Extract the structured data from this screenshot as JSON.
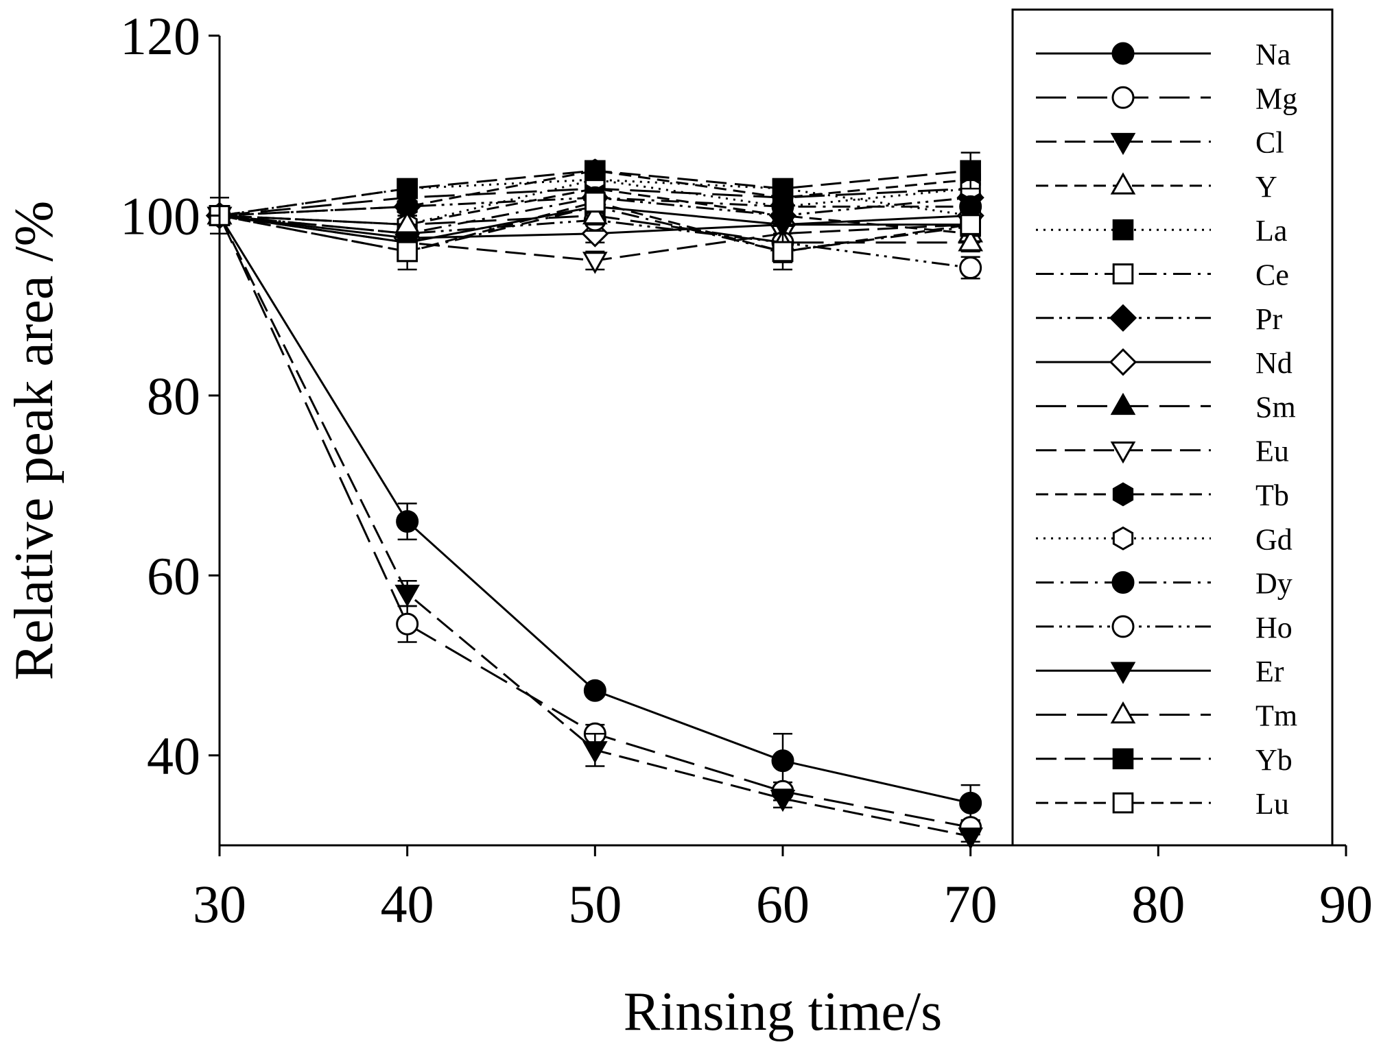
{
  "chart_data": {
    "type": "line",
    "title": "",
    "xlabel": "Rinsing time/s",
    "ylabel": "Relative peak area /%",
    "xlim": [
      30,
      90
    ],
    "ylim": [
      30,
      120
    ],
    "xticks": [
      30,
      40,
      50,
      60,
      70,
      80,
      90
    ],
    "yticks": [
      40,
      60,
      80,
      100,
      120
    ],
    "legend_position": "right",
    "x": [
      30,
      40,
      50,
      60,
      70
    ],
    "series": [
      {
        "name": "Na",
        "values": [
          100,
          66,
          47.2,
          39.4,
          34.7
        ],
        "errors": [
          0,
          2.0,
          0.6,
          3.0,
          2.0
        ],
        "marker": "circle",
        "filled": true,
        "dash": "solid"
      },
      {
        "name": "Mg",
        "values": [
          100,
          54.6,
          42.4,
          36,
          32
        ],
        "errors": [
          0,
          2.0,
          1.0,
          1.0,
          0.8
        ],
        "marker": "circle",
        "filled": false,
        "dash": "longdash"
      },
      {
        "name": "Cl",
        "values": [
          100,
          58,
          40.6,
          35.2,
          31
        ],
        "errors": [
          0,
          1.4,
          1.8,
          1.0,
          0.6
        ],
        "marker": "triangle-down",
        "filled": true,
        "dash": "longdash2"
      },
      {
        "name": "Y",
        "values": [
          100,
          99,
          103,
          100,
          98
        ],
        "errors": [
          2.0,
          1.5,
          1.0,
          1.0,
          1.0
        ],
        "marker": "triangle-up",
        "filled": false,
        "dash": "medium"
      },
      {
        "name": "La",
        "values": [
          100,
          103,
          104,
          103,
          100
        ],
        "errors": [
          2.0,
          1.0,
          1.0,
          1.0,
          1.0
        ],
        "marker": "square",
        "filled": true,
        "dash": "dotted"
      },
      {
        "name": "Ce",
        "values": [
          100,
          96,
          101,
          96,
          98.8
        ],
        "errors": [
          1.0,
          1.0,
          1.0,
          1.2,
          1.0
        ],
        "marker": "square",
        "filled": false,
        "dash": "dashdot"
      },
      {
        "name": "Pr",
        "values": [
          100,
          101,
          102,
          100,
          102
        ],
        "errors": [
          1.0,
          1.0,
          1.0,
          1.0,
          1.0
        ],
        "marker": "diamond",
        "filled": true,
        "dash": "dashdotdot"
      },
      {
        "name": "Nd",
        "values": [
          100,
          97.5,
          98,
          99,
          100
        ],
        "errors": [
          1.0,
          1.0,
          1.0,
          1.0,
          1.0
        ],
        "marker": "diamond",
        "filled": false,
        "dash": "solid"
      },
      {
        "name": "Sm",
        "values": [
          100,
          102,
          103,
          102,
          103
        ],
        "errors": [
          1.0,
          1.0,
          1.0,
          1.0,
          1.0
        ],
        "marker": "triangle-up",
        "filled": true,
        "dash": "longdash"
      },
      {
        "name": "Eu",
        "values": [
          100,
          97,
          95,
          98,
          99
        ],
        "errors": [
          1.0,
          1.0,
          1.0,
          1.0,
          1.0
        ],
        "marker": "triangle-down",
        "filled": false,
        "dash": "longdash2"
      },
      {
        "name": "Tb",
        "values": [
          100,
          101,
          105,
          102,
          104
        ],
        "errors": [
          1.0,
          1.0,
          1.0,
          1.0,
          1.5
        ],
        "marker": "hexagon",
        "filled": true,
        "dash": "medium"
      },
      {
        "name": "Gd",
        "values": [
          100,
          99,
          104,
          101,
          103
        ],
        "errors": [
          1.0,
          1.0,
          1.0,
          1.0,
          1.0
        ],
        "marker": "hexagon",
        "filled": false,
        "dash": "dotted"
      },
      {
        "name": "Dy",
        "values": [
          100,
          98,
          102,
          101,
          101
        ],
        "errors": [
          1.0,
          1.0,
          1.0,
          1.0,
          1.0
        ],
        "marker": "circle",
        "filled": true,
        "dash": "dashdot"
      },
      {
        "name": "Ho",
        "values": [
          100,
          98,
          99.5,
          97,
          94.2
        ],
        "errors": [
          1.0,
          1.0,
          1.2,
          1.0,
          1.2
        ],
        "marker": "circle",
        "filled": false,
        "dash": "dashdotdot"
      },
      {
        "name": "Er",
        "values": [
          100,
          97,
          101,
          99,
          99
        ],
        "errors": [
          1.0,
          1.0,
          1.0,
          1.0,
          1.0
        ],
        "marker": "triangle-down",
        "filled": true,
        "dash": "solid"
      },
      {
        "name": "Tm",
        "values": [
          100,
          99,
          100,
          97,
          97
        ],
        "errors": [
          1.0,
          1.0,
          1.0,
          1.0,
          1.0
        ],
        "marker": "triangle-up",
        "filled": false,
        "dash": "longdash"
      },
      {
        "name": "Yb",
        "values": [
          100,
          103,
          105,
          103,
          105
        ],
        "errors": [
          1.0,
          1.0,
          1.0,
          1.0,
          2.0
        ],
        "marker": "square",
        "filled": true,
        "dash": "longdash2"
      },
      {
        "name": "Lu",
        "values": [
          100,
          96,
          101.5,
          96,
          99
        ],
        "errors": [
          1.0,
          2.0,
          1.0,
          2.0,
          1.0
        ],
        "marker": "square",
        "filled": false,
        "dash": "medium"
      }
    ]
  }
}
